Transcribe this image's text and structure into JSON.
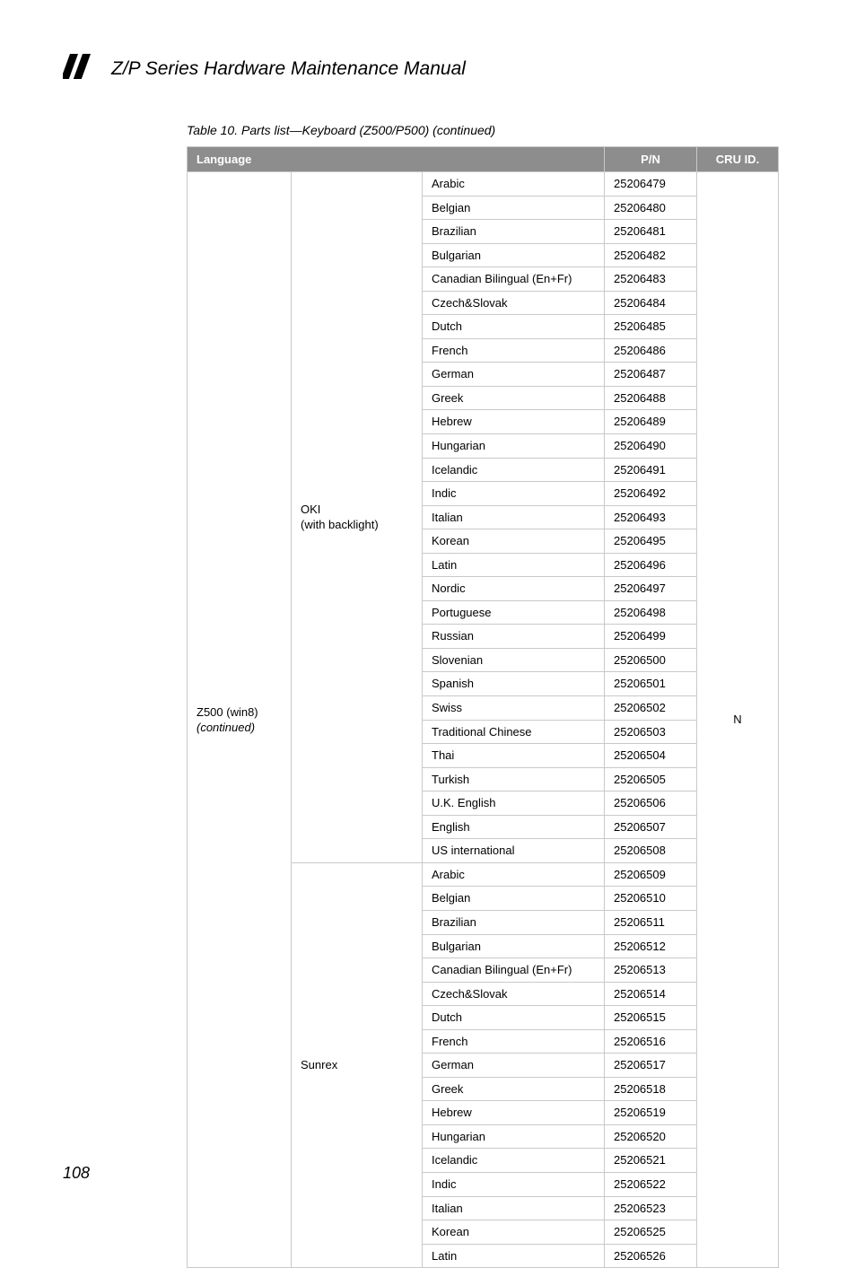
{
  "header": {
    "doc_title": "Z/P Series Hardware Maintenance Manual"
  },
  "caption": "Table 10. Parts list—Keyboard (Z500/P500) (continued)",
  "columns": {
    "language": "Language",
    "pn": "P/N",
    "cru": "CRU ID."
  },
  "model": {
    "name": "Z500 (win8)",
    "sub": "(continued)"
  },
  "cru_id": "N",
  "groups": [
    {
      "mfg_line1": "OKI",
      "mfg_line2": "(with backlight)",
      "rows": [
        {
          "lang": "Arabic",
          "pn": "25206479"
        },
        {
          "lang": "Belgian",
          "pn": "25206480"
        },
        {
          "lang": "Brazilian",
          "pn": "25206481"
        },
        {
          "lang": "Bulgarian",
          "pn": "25206482"
        },
        {
          "lang": "Canadian Bilingual (En+Fr)",
          "pn": "25206483"
        },
        {
          "lang": "Czech&Slovak",
          "pn": "25206484"
        },
        {
          "lang": "Dutch",
          "pn": "25206485"
        },
        {
          "lang": "French",
          "pn": "25206486"
        },
        {
          "lang": "German",
          "pn": "25206487"
        },
        {
          "lang": "Greek",
          "pn": "25206488"
        },
        {
          "lang": "Hebrew",
          "pn": "25206489"
        },
        {
          "lang": "Hungarian",
          "pn": "25206490"
        },
        {
          "lang": "Icelandic",
          "pn": "25206491"
        },
        {
          "lang": "Indic",
          "pn": "25206492"
        },
        {
          "lang": "Italian",
          "pn": "25206493"
        },
        {
          "lang": "Korean",
          "pn": "25206495"
        },
        {
          "lang": "Latin",
          "pn": "25206496"
        },
        {
          "lang": "Nordic",
          "pn": "25206497"
        },
        {
          "lang": "Portuguese",
          "pn": "25206498"
        },
        {
          "lang": "Russian",
          "pn": "25206499"
        },
        {
          "lang": "Slovenian",
          "pn": "25206500"
        },
        {
          "lang": "Spanish",
          "pn": "25206501"
        },
        {
          "lang": "Swiss",
          "pn": "25206502"
        },
        {
          "lang": "Traditional Chinese",
          "pn": "25206503"
        },
        {
          "lang": "Thai",
          "pn": "25206504"
        },
        {
          "lang": "Turkish",
          "pn": "25206505"
        },
        {
          "lang": "U.K. English",
          "pn": "25206506"
        },
        {
          "lang": "English",
          "pn": "25206507"
        },
        {
          "lang": "US international",
          "pn": "25206508"
        }
      ]
    },
    {
      "mfg_line1": "Sunrex",
      "mfg_line2": "",
      "rows": [
        {
          "lang": "Arabic",
          "pn": "25206509"
        },
        {
          "lang": "Belgian",
          "pn": "25206510"
        },
        {
          "lang": "Brazilian",
          "pn": "25206511"
        },
        {
          "lang": "Bulgarian",
          "pn": "25206512"
        },
        {
          "lang": "Canadian Bilingual (En+Fr)",
          "pn": "25206513"
        },
        {
          "lang": "Czech&Slovak",
          "pn": "25206514"
        },
        {
          "lang": "Dutch",
          "pn": "25206515"
        },
        {
          "lang": "French",
          "pn": "25206516"
        },
        {
          "lang": "German",
          "pn": "25206517"
        },
        {
          "lang": "Greek",
          "pn": "25206518"
        },
        {
          "lang": "Hebrew",
          "pn": "25206519"
        },
        {
          "lang": "Hungarian",
          "pn": "25206520"
        },
        {
          "lang": "Icelandic",
          "pn": "25206521"
        },
        {
          "lang": "Indic",
          "pn": "25206522"
        },
        {
          "lang": "Italian",
          "pn": "25206523"
        },
        {
          "lang": "Korean",
          "pn": "25206525"
        },
        {
          "lang": "Latin",
          "pn": "25206526"
        }
      ]
    }
  ],
  "page_number": "108"
}
